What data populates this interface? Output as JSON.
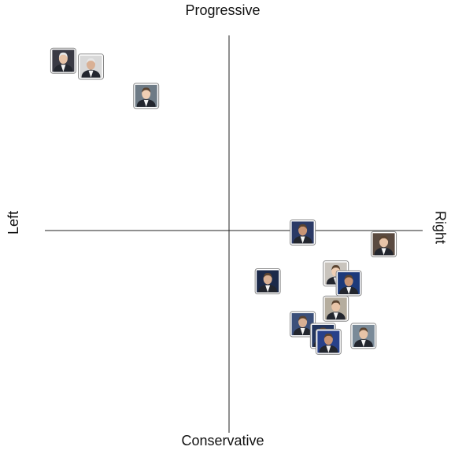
{
  "chart_data": {
    "type": "scatter",
    "top_label": "Progressive",
    "bottom_label": "Conservative",
    "left_label": "Left",
    "right_label": "Right",
    "x": [
      -9.0,
      -7.5,
      -4.5,
      4.0,
      8.4,
      2.1,
      5.8,
      6.5,
      5.8,
      4.0,
      5.1,
      5.4,
      7.3
    ],
    "y": [
      8.7,
      8.4,
      6.9,
      -0.1,
      -0.7,
      -2.6,
      -2.2,
      -2.7,
      -4.0,
      -4.8,
      -5.4,
      -5.7,
      -5.4
    ],
    "xlim": [
      -10,
      10
    ],
    "ylim": [
      -10,
      10
    ]
  }
}
